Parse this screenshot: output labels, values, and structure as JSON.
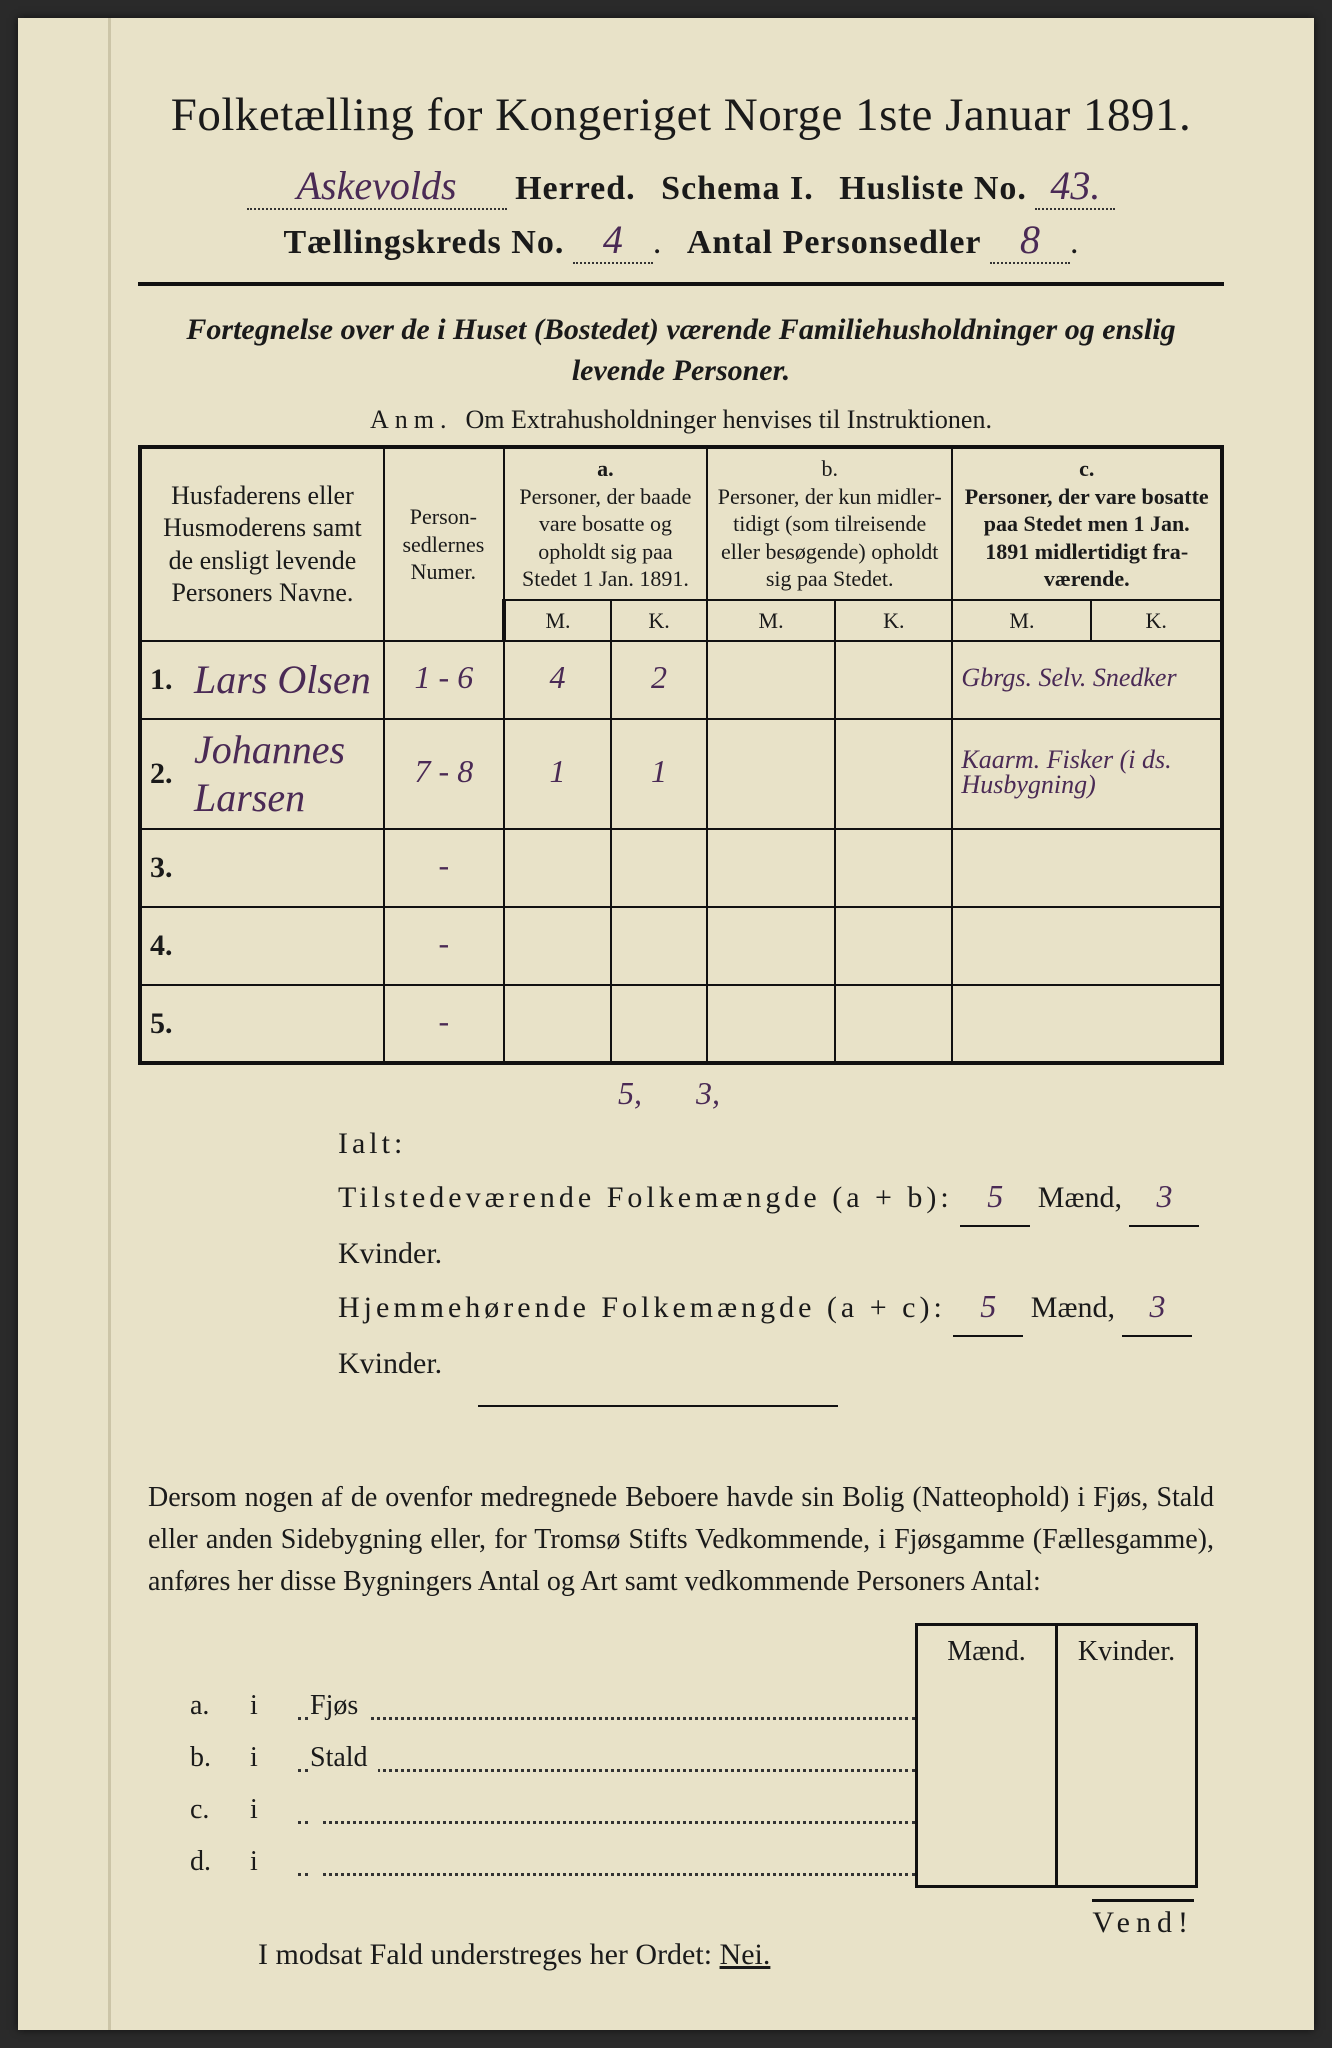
{
  "title": "Folketælling for Kongeriget Norge 1ste Januar 1891.",
  "header": {
    "herred_value": "Askevolds",
    "herred_label": "Herred.",
    "schema_label": "Schema I.",
    "husliste_label": "Husliste No.",
    "husliste_value": "43.",
    "kreds_label": "Tællingskreds No.",
    "kreds_value": "4",
    "antal_label": "Antal Personsedler",
    "antal_value": "8"
  },
  "subtitle": "Fortegnelse over de i Huset (Bostedet) værende Familiehusholdninger og enslig levende Personer.",
  "anm": {
    "pre": "Anm.",
    "text": "Om Extrahusholdninger henvises til Instruktionen."
  },
  "columns": {
    "a_name": "Husfaderens eller Husmode­rens samt de ensligt levende Personers Navne.",
    "b_num": "Person­sedler­nes Numer.",
    "c_a_tag": "a.",
    "c_a": "Personer, der baade vare bo­satte og opholdt sig paa Stedet 1 Jan. 1891.",
    "c_b_tag": "b.",
    "c_b": "Personer, der kun midler­tidigt (som tilreisende eller besøgende) opholdt sig paa Stedet.",
    "c_c_tag": "c.",
    "c_c": "Personer, der vare bosatte paa Stedet men 1 Jan. 1891 midler­tidigt fra­værende.",
    "M": "M.",
    "K": "K."
  },
  "rows": [
    {
      "n": "1.",
      "name": "Lars Olsen",
      "num": "1 - 6",
      "aM": "4",
      "aK": "2",
      "bM": "",
      "bK": "",
      "note": "Gbrgs. Selv. Snedker"
    },
    {
      "n": "2.",
      "name": "Johannes Larsen",
      "num": "7 - 8",
      "aM": "1",
      "aK": "1",
      "bM": "",
      "bK": "",
      "note": "Kaarm. Fisker (i ds. Husbygning)"
    },
    {
      "n": "3.",
      "name": "",
      "num": "-",
      "aM": "",
      "aK": "",
      "bM": "",
      "bK": "",
      "note": ""
    },
    {
      "n": "4.",
      "name": "",
      "num": "-",
      "aM": "",
      "aK": "",
      "bM": "",
      "bK": "",
      "note": ""
    },
    {
      "n": "5.",
      "name": "",
      "num": "-",
      "aM": "",
      "aK": "",
      "bM": "",
      "bK": "",
      "note": ""
    }
  ],
  "totals": {
    "sum_m": "5,",
    "sum_k": "3,",
    "ialt": "Ialt:",
    "line1_label": "Tilstedeværende Folkemængde (a + b):",
    "line1_m": "5",
    "line1_k": "3",
    "line2_label": "Hjemmehørende Folkemængde (a + c):",
    "line2_m": "5",
    "line2_k": "3",
    "maend": "Mænd,",
    "kvinder": "Kvinder."
  },
  "para": "Dersom nogen af de ovenfor medregnede Beboere havde sin Bolig (Natte­ophold) i Fjøs, Stald eller anden Sidebygning eller, for Tromsø Stifts Ved­kommende, i Fjøsgamme (Fællesgamme), anføres her disse Bygningers Antal og Art samt vedkommende Personers Antal:",
  "btable": {
    "maend": "Mænd.",
    "kvinder": "Kvinder.",
    "rows": [
      {
        "k": "a.",
        "i": "i",
        "label": "Fjøs"
      },
      {
        "k": "b.",
        "i": "i",
        "label": "Stald"
      },
      {
        "k": "c.",
        "i": "i",
        "label": ""
      },
      {
        "k": "d.",
        "i": "i",
        "label": ""
      }
    ]
  },
  "nei": {
    "text": "I modsat Fald understreges her Ordet:",
    "word": "Nei."
  },
  "vend": "Vend!",
  "colors": {
    "paper": "#e8e2c8",
    "ink": "#1a1a1a",
    "handwriting": "#4a2a55",
    "frame": "#2a2a2a"
  }
}
